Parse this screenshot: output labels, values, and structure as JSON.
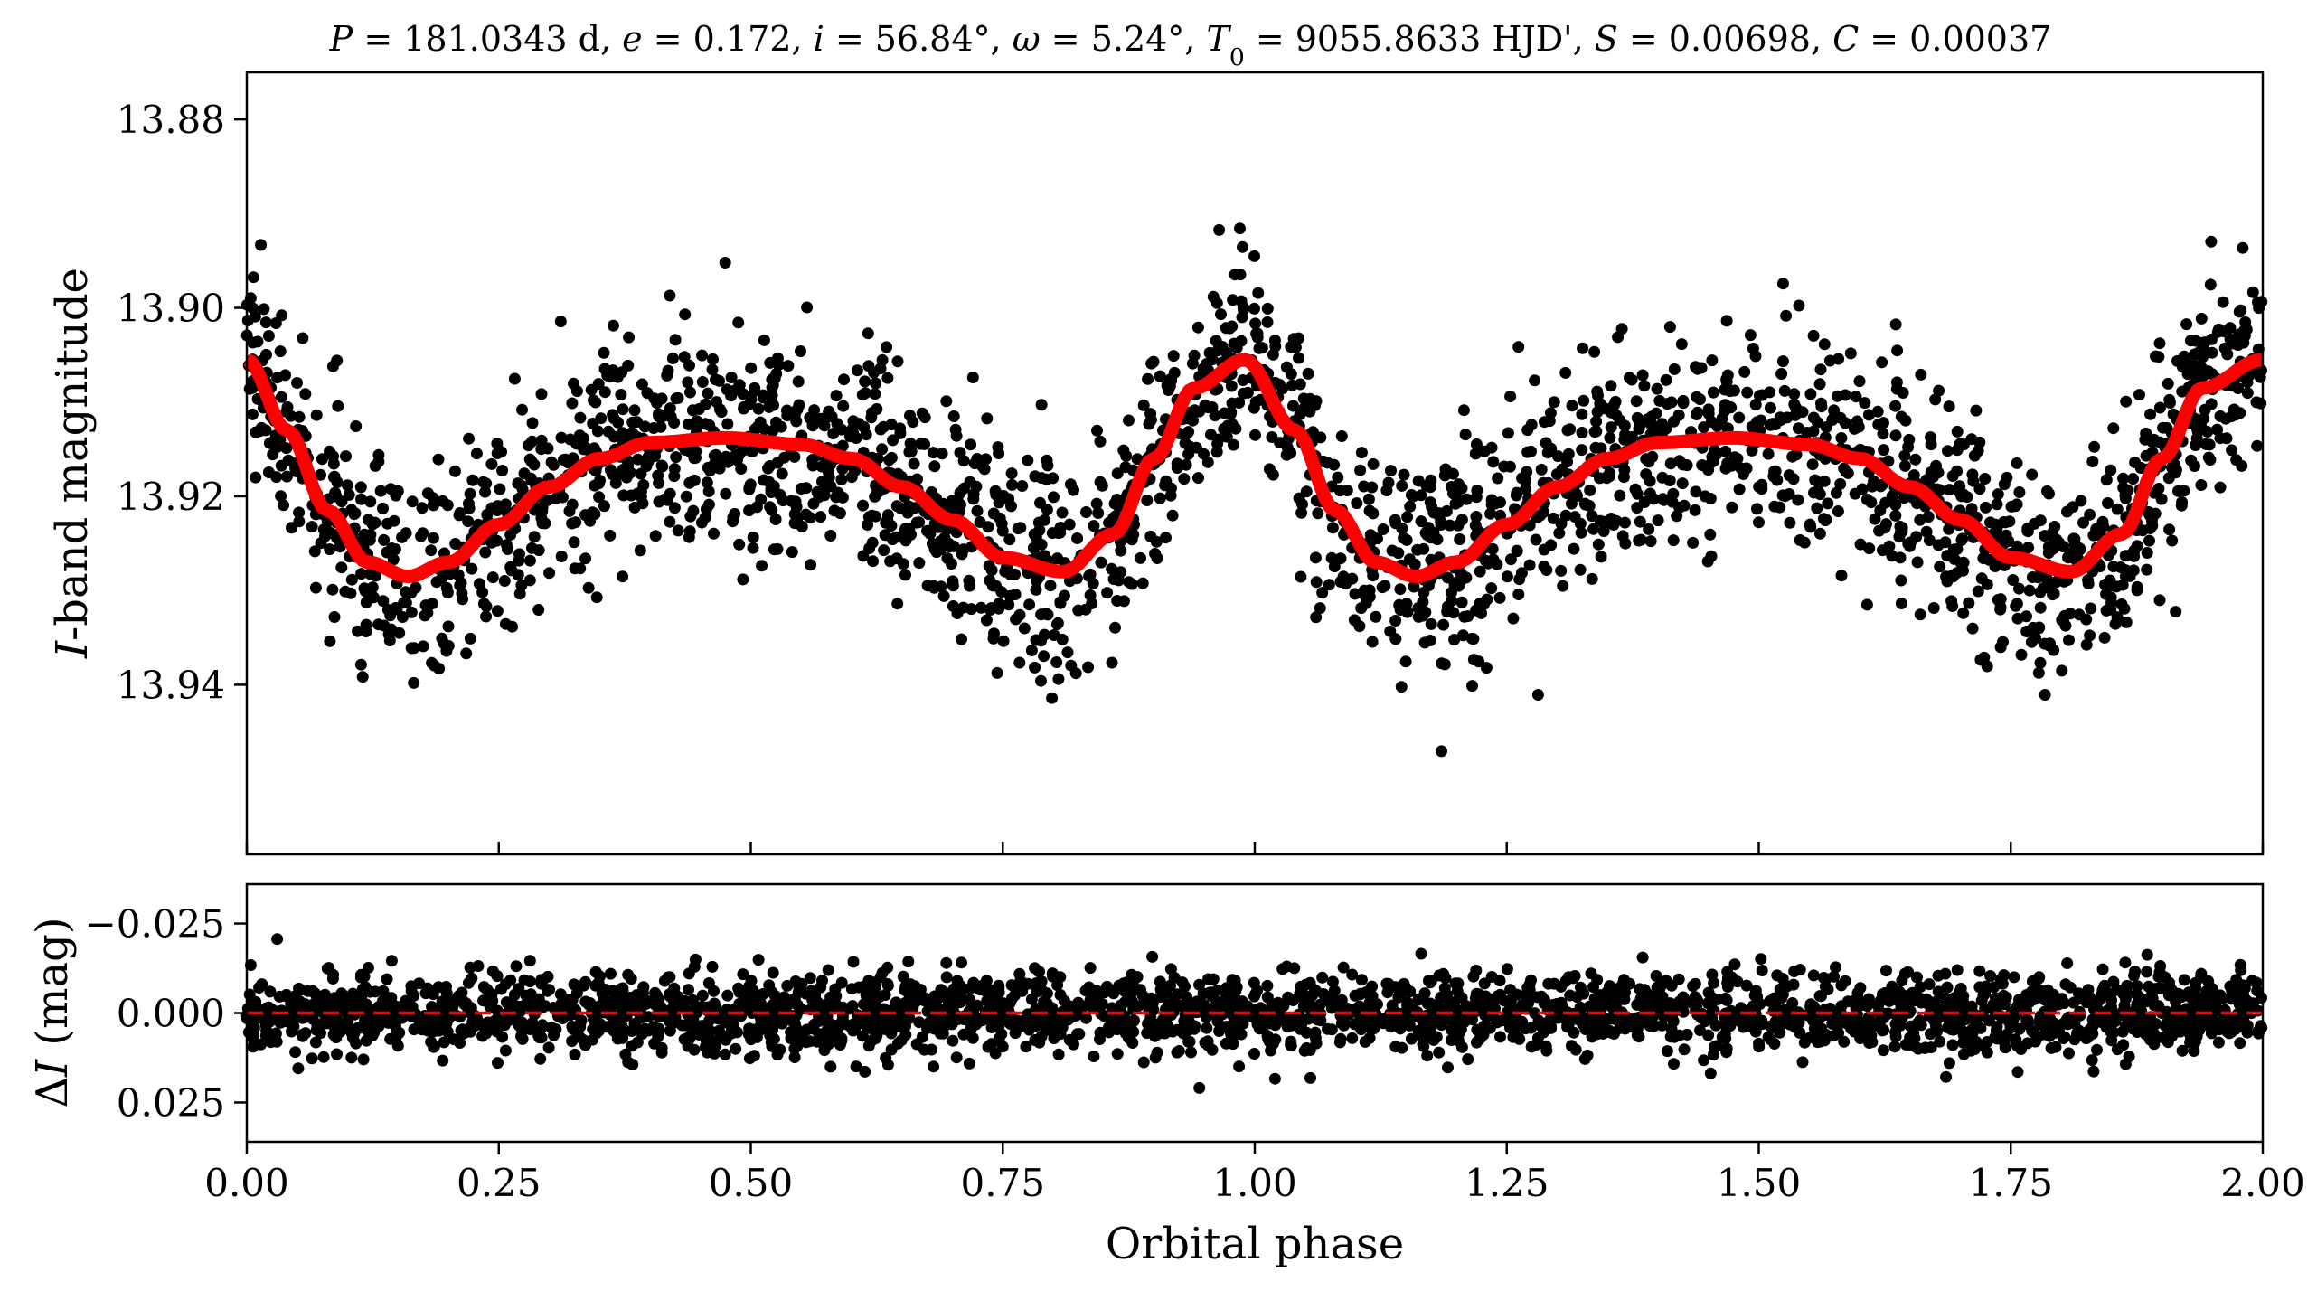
{
  "figure": {
    "title_parts": [
      {
        "t": "P",
        "i": true
      },
      {
        "t": " = 181.0343 d, "
      },
      {
        "t": "e",
        "i": true
      },
      {
        "t": " = 0.172, "
      },
      {
        "t": "i",
        "i": true
      },
      {
        "t": " = 56.84°, "
      },
      {
        "t": "ω",
        "i": true
      },
      {
        "t": " = 5.24°, "
      },
      {
        "t": "T",
        "i": true
      },
      {
        "t": "0",
        "sub": true
      },
      {
        "t": " = 9055.8633 HJD', "
      },
      {
        "t": "S",
        "i": true
      },
      {
        "t": " = 0.00698, "
      },
      {
        "t": "C",
        "i": true
      },
      {
        "t": " = 0.00037"
      }
    ]
  },
  "chart_data": [
    {
      "type": "scatter",
      "panel": "top",
      "title": "P = 181.0343 d, e = 0.172, i = 56.84°, ω = 5.24°, T0 = 9055.8633 HJD', S = 0.00698, C = 0.00037",
      "xlabel": "",
      "ylabel": "I-band magnitude",
      "ylabel_parts": [
        {
          "t": "I",
          "i": true
        },
        {
          "t": "-band magnitude"
        }
      ],
      "xlim": [
        0.0,
        2.0
      ],
      "ylim": [
        13.958,
        13.875
      ],
      "y_inverted": true,
      "xticks": [
        0.0,
        0.25,
        0.5,
        0.75,
        1.0,
        1.25,
        1.5,
        1.75,
        2.0
      ],
      "yticks": [
        13.88,
        13.9,
        13.92,
        13.94
      ],
      "ytick_labels": [
        "13.88",
        "13.90",
        "13.92",
        "13.94"
      ],
      "grid": false,
      "series": [
        {
          "kind": "points",
          "color": "#000000",
          "scatter_sigma": 0.0055,
          "model_points": [
            [
              0.0,
              13.9055
            ],
            [
              0.04,
              13.913
            ],
            [
              0.08,
              13.9215
            ],
            [
              0.12,
              13.927
            ],
            [
              0.16,
              13.9285
            ],
            [
              0.2,
              13.927
            ],
            [
              0.25,
              13.923
            ],
            [
              0.3,
              13.919
            ],
            [
              0.35,
              13.916
            ],
            [
              0.4,
              13.9143
            ],
            [
              0.475,
              13.9138
            ],
            [
              0.55,
              13.9145
            ],
            [
              0.6,
              13.916
            ],
            [
              0.65,
              13.919
            ],
            [
              0.7,
              13.9225
            ],
            [
              0.75,
              13.9265
            ],
            [
              0.81,
              13.928
            ],
            [
              0.86,
              13.924
            ],
            [
              0.9,
              13.916
            ],
            [
              0.94,
              13.9085
            ],
            [
              0.99,
              13.9055
            ],
            [
              1.04,
              13.913
            ],
            [
              1.08,
              13.9215
            ],
            [
              1.12,
              13.927
            ],
            [
              1.16,
              13.9285
            ],
            [
              1.2,
              13.927
            ],
            [
              1.25,
              13.923
            ],
            [
              1.3,
              13.919
            ],
            [
              1.35,
              13.916
            ],
            [
              1.4,
              13.9143
            ],
            [
              1.475,
              13.9138
            ],
            [
              1.55,
              13.9145
            ],
            [
              1.6,
              13.916
            ],
            [
              1.65,
              13.919
            ],
            [
              1.7,
              13.9225
            ],
            [
              1.75,
              13.9265
            ],
            [
              1.81,
              13.928
            ],
            [
              1.86,
              13.924
            ],
            [
              1.9,
              13.916
            ],
            [
              1.94,
              13.9085
            ],
            [
              2.0,
              13.9055
            ]
          ]
        },
        {
          "kind": "model-curve",
          "color": "#ff0000",
          "x": [
            0.0,
            0.04,
            0.08,
            0.12,
            0.16,
            0.2,
            0.25,
            0.3,
            0.35,
            0.4,
            0.475,
            0.55,
            0.6,
            0.65,
            0.7,
            0.75,
            0.81,
            0.86,
            0.9,
            0.94,
            0.99,
            1.04,
            1.08,
            1.12,
            1.16,
            1.2,
            1.25,
            1.3,
            1.35,
            1.4,
            1.475,
            1.55,
            1.6,
            1.65,
            1.7,
            1.75,
            1.81,
            1.86,
            1.9,
            1.94,
            2.0
          ],
          "y": [
            13.9055,
            13.913,
            13.9215,
            13.927,
            13.9285,
            13.927,
            13.923,
            13.919,
            13.916,
            13.9143,
            13.9138,
            13.9145,
            13.916,
            13.919,
            13.9225,
            13.9265,
            13.928,
            13.924,
            13.916,
            13.9085,
            13.9055,
            13.913,
            13.9215,
            13.927,
            13.9285,
            13.927,
            13.923,
            13.919,
            13.916,
            13.9143,
            13.9138,
            13.9145,
            13.916,
            13.919,
            13.9225,
            13.9265,
            13.928,
            13.924,
            13.916,
            13.9085,
            13.9055
          ]
        }
      ]
    },
    {
      "type": "scatter",
      "panel": "bottom",
      "xlabel": "Orbital phase",
      "ylabel": "ΔI (mag)",
      "ylabel_parts": [
        {
          "t": "Δ"
        },
        {
          "t": "I",
          "i": true
        },
        {
          "t": " (mag)"
        }
      ],
      "xlim": [
        0.0,
        2.0
      ],
      "ylim": [
        0.036,
        -0.036
      ],
      "y_inverted": true,
      "xticks": [
        0.0,
        0.25,
        0.5,
        0.75,
        1.0,
        1.25,
        1.5,
        1.75,
        2.0
      ],
      "xtick_labels": [
        "0.00",
        "0.25",
        "0.50",
        "0.75",
        "1.00",
        "1.25",
        "1.50",
        "1.75",
        "2.00"
      ],
      "yticks": [
        -0.025,
        0.0,
        0.025
      ],
      "ytick_labels": [
        "−0.025",
        "0.000",
        "0.025"
      ],
      "grid": false,
      "series": [
        {
          "kind": "residual-points",
          "color": "#000000",
          "scatter_sigma": 0.0055,
          "center": 0.0
        },
        {
          "kind": "zero-line",
          "color": "#ff0000",
          "style": "dashed",
          "y": 0.0
        }
      ]
    }
  ]
}
